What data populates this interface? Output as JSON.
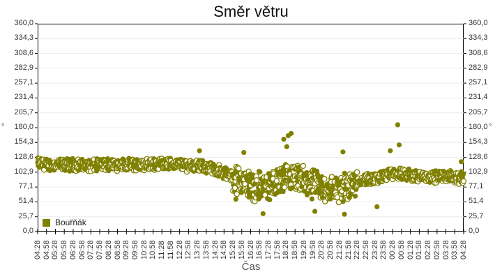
{
  "chart_data": {
    "type": "scatter",
    "title": "Směr větru",
    "xlabel": "Čas",
    "ylabel": "°",
    "ylabel_right": "°",
    "ylim": [
      0,
      360
    ],
    "yticks": [
      "0,0",
      "25,7",
      "51,4",
      "77,1",
      "102,9",
      "128,6",
      "154,3",
      "180,0",
      "205,7",
      "231,4",
      "257,1",
      "282,9",
      "308,6",
      "334,3",
      "360,0"
    ],
    "xticks": [
      "04:28",
      "04:58",
      "05:28",
      "05:58",
      "06:28",
      "06:58",
      "07:28",
      "07:58",
      "08:28",
      "08:58",
      "09:28",
      "09:58",
      "10:28",
      "10:58",
      "11:28",
      "11:58",
      "12:28",
      "12:58",
      "13:28",
      "13:58",
      "14:28",
      "14:58",
      "15:28",
      "15:58",
      "16:28",
      "16:58",
      "17:28",
      "17:58",
      "18:28",
      "18:58",
      "19:28",
      "19:58",
      "20:28",
      "20:58",
      "21:28",
      "21:58",
      "22:28",
      "22:58",
      "23:28",
      "23:58",
      "00:28",
      "00:58",
      "01:28",
      "01:58",
      "02:28",
      "02:58",
      "03:28",
      "03:58",
      "04:28"
    ],
    "grid": true,
    "legend_position": "bottom-left inside",
    "series": [
      {
        "name": "Bouřňák",
        "color": "#808000",
        "description": "Dense scatter of wind direction readings; ~105-125° from 04:28 to ~14:00, dropping to ~60-110° with wide spread between ~15:30 and ~22:00 (outliers up to ~170° near 18:30 and down to ~30°), returning to ~85-115° until 04:28; outlier ~185° near 00:40",
        "points_hourly_mean": [
          {
            "x": "04:28",
            "y": 118
          },
          {
            "x": "05:28",
            "y": 115
          },
          {
            "x": "06:28",
            "y": 116
          },
          {
            "x": "07:28",
            "y": 114
          },
          {
            "x": "08:28",
            "y": 117
          },
          {
            "x": "09:28",
            "y": 116
          },
          {
            "x": "10:28",
            "y": 115
          },
          {
            "x": "11:28",
            "y": 118
          },
          {
            "x": "12:28",
            "y": 116
          },
          {
            "x": "13:28",
            "y": 114
          },
          {
            "x": "14:28",
            "y": 108
          },
          {
            "x": "15:28",
            "y": 95
          },
          {
            "x": "16:28",
            "y": 80
          },
          {
            "x": "17:28",
            "y": 78
          },
          {
            "x": "18:28",
            "y": 92
          },
          {
            "x": "19:28",
            "y": 88
          },
          {
            "x": "20:28",
            "y": 75
          },
          {
            "x": "21:28",
            "y": 72
          },
          {
            "x": "22:28",
            "y": 88
          },
          {
            "x": "23:28",
            "y": 92
          },
          {
            "x": "00:28",
            "y": 100
          },
          {
            "x": "01:28",
            "y": 98
          },
          {
            "x": "02:28",
            "y": 95
          },
          {
            "x": "03:28",
            "y": 96
          },
          {
            "x": "04:28",
            "y": 92
          }
        ],
        "outliers": [
          {
            "x": "13:35",
            "y": 140
          },
          {
            "x": "16:05",
            "y": 137
          },
          {
            "x": "18:20",
            "y": 160
          },
          {
            "x": "18:35",
            "y": 166
          },
          {
            "x": "18:45",
            "y": 170
          },
          {
            "x": "18:30",
            "y": 147
          },
          {
            "x": "17:10",
            "y": 31
          },
          {
            "x": "20:05",
            "y": 35
          },
          {
            "x": "21:40",
            "y": 138
          },
          {
            "x": "21:45",
            "y": 30
          },
          {
            "x": "00:45",
            "y": 185
          },
          {
            "x": "00:50",
            "y": 150
          },
          {
            "x": "00:20",
            "y": 140
          },
          {
            "x": "04:20",
            "y": 121
          },
          {
            "x": "23:35",
            "y": 43
          },
          {
            "x": "15:38",
            "y": 56
          }
        ]
      }
    ]
  },
  "legend": {
    "label": "Bouřňák",
    "color": "#808000"
  }
}
